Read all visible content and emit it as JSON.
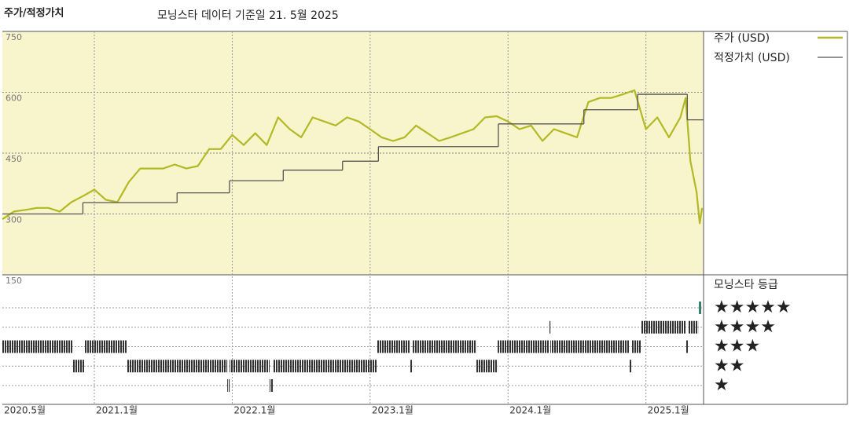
{
  "chart_data": {
    "type": "line",
    "header": "주가/적정가치",
    "title": "모닝스타 데이터 기준일 21. 5월 2025",
    "xlim": [
      2020.333,
      2025.418
    ],
    "xticks": [
      {
        "value": 2020.333,
        "label": "2020.5월"
      },
      {
        "value": 2021,
        "label": "2021.1월"
      },
      {
        "value": 2022,
        "label": "2022.1월"
      },
      {
        "value": 2023,
        "label": "2023.1월"
      },
      {
        "value": 2024,
        "label": "2024.1월"
      },
      {
        "value": 2025,
        "label": "2025.1월"
      }
    ],
    "ylim": [
      150,
      750
    ],
    "yticks": [
      150,
      300,
      450,
      600,
      750
    ],
    "grid": true,
    "series": [
      {
        "name": "주가 (USD)",
        "color": "#b3b825",
        "x": [
          2020.333,
          2020.417,
          2020.5,
          2020.583,
          2020.667,
          2020.75,
          2020.833,
          2020.917,
          2021,
          2021.083,
          2021.167,
          2021.25,
          2021.333,
          2021.417,
          2021.5,
          2021.583,
          2021.667,
          2021.75,
          2021.833,
          2021.917,
          2022,
          2022.083,
          2022.167,
          2022.25,
          2022.333,
          2022.417,
          2022.5,
          2022.583,
          2022.667,
          2022.75,
          2022.833,
          2022.917,
          2023,
          2023.083,
          2023.167,
          2023.25,
          2023.333,
          2023.417,
          2023.5,
          2023.583,
          2023.667,
          2023.75,
          2023.833,
          2023.917,
          2024,
          2024.083,
          2024.167,
          2024.25,
          2024.333,
          2024.417,
          2024.5,
          2024.583,
          2024.667,
          2024.75,
          2024.833,
          2024.917,
          2025,
          2025.083,
          2025.167,
          2025.25,
          2025.288,
          2025.322,
          2025.367,
          2025.39,
          2025.407
        ],
        "values": [
          287,
          306,
          310,
          315,
          315,
          306,
          329,
          344,
          360,
          335,
          329,
          379,
          412,
          412,
          412,
          422,
          412,
          418,
          460,
          460,
          495,
          470,
          499,
          470,
          538,
          509,
          489,
          538,
          528,
          518,
          538,
          528,
          509,
          489,
          480,
          489,
          518,
          499,
          480,
          489,
          499,
          509,
          538,
          541,
          528,
          509,
          518,
          480,
          509,
          499,
          489,
          576,
          586,
          586,
          595,
          605,
          509,
          538,
          489,
          538,
          586,
          431,
          354,
          277,
          315
        ]
      },
      {
        "name": "적정가치 (USD)",
        "color": "#555555",
        "step": true,
        "x": [
          2020.333,
          2020.917,
          2021.6,
          2021.98,
          2022.37,
          2022.8,
          2023.06,
          2023.93,
          2024.55,
          2024.94,
          2025.3
        ],
        "values": [
          300,
          328,
          352,
          382,
          408,
          430,
          466,
          522,
          557,
          595,
          532
        ]
      }
    ],
    "ratings": {
      "title": "모닝스타 등급",
      "color": "#333333",
      "top_color": "#3a7d6b",
      "levels": [
        {
          "stars": 5,
          "label": "★★★★★"
        },
        {
          "stars": 4,
          "label": "★★★★"
        },
        {
          "stars": 3,
          "label": "★★★"
        },
        {
          "stars": 2,
          "label": "★★"
        },
        {
          "stars": 1,
          "label": "★"
        }
      ],
      "periods": [
        {
          "start": 2020.333,
          "end": 2020.846,
          "stars": 3
        },
        {
          "start": 2020.846,
          "end": 2020.926,
          "stars": 2
        },
        {
          "start": 2020.926,
          "end": 2021.239,
          "stars": 3
        },
        {
          "start": 2021.239,
          "end": 2021.964,
          "stars": 2
        },
        {
          "start": 2021.964,
          "end": 2021.981,
          "stars": 1
        },
        {
          "start": 2021.981,
          "end": 2022.271,
          "stars": 2
        },
        {
          "start": 2022.271,
          "end": 2022.294,
          "stars": 1
        },
        {
          "start": 2022.294,
          "end": 2023.052,
          "stars": 2
        },
        {
          "start": 2023.052,
          "end": 2023.292,
          "stars": 3
        },
        {
          "start": 2023.292,
          "end": 2023.309,
          "stars": 2
        },
        {
          "start": 2023.309,
          "end": 2023.771,
          "stars": 3
        },
        {
          "start": 2023.771,
          "end": 2023.925,
          "stars": 2
        },
        {
          "start": 2023.925,
          "end": 2024.296,
          "stars": 3
        },
        {
          "start": 2024.296,
          "end": 2024.307,
          "stars": 4
        },
        {
          "start": 2024.307,
          "end": 2024.877,
          "stars": 3
        },
        {
          "start": 2024.877,
          "end": 2024.894,
          "stars": 2
        },
        {
          "start": 2024.894,
          "end": 2024.963,
          "stars": 3
        },
        {
          "start": 2024.963,
          "end": 2025.288,
          "stars": 4
        },
        {
          "start": 2025.288,
          "end": 2025.305,
          "stars": 3
        },
        {
          "start": 2025.305,
          "end": 2025.379,
          "stars": 4
        },
        {
          "start": 2025.384,
          "end": 2025.401,
          "stars": 5
        }
      ]
    }
  }
}
